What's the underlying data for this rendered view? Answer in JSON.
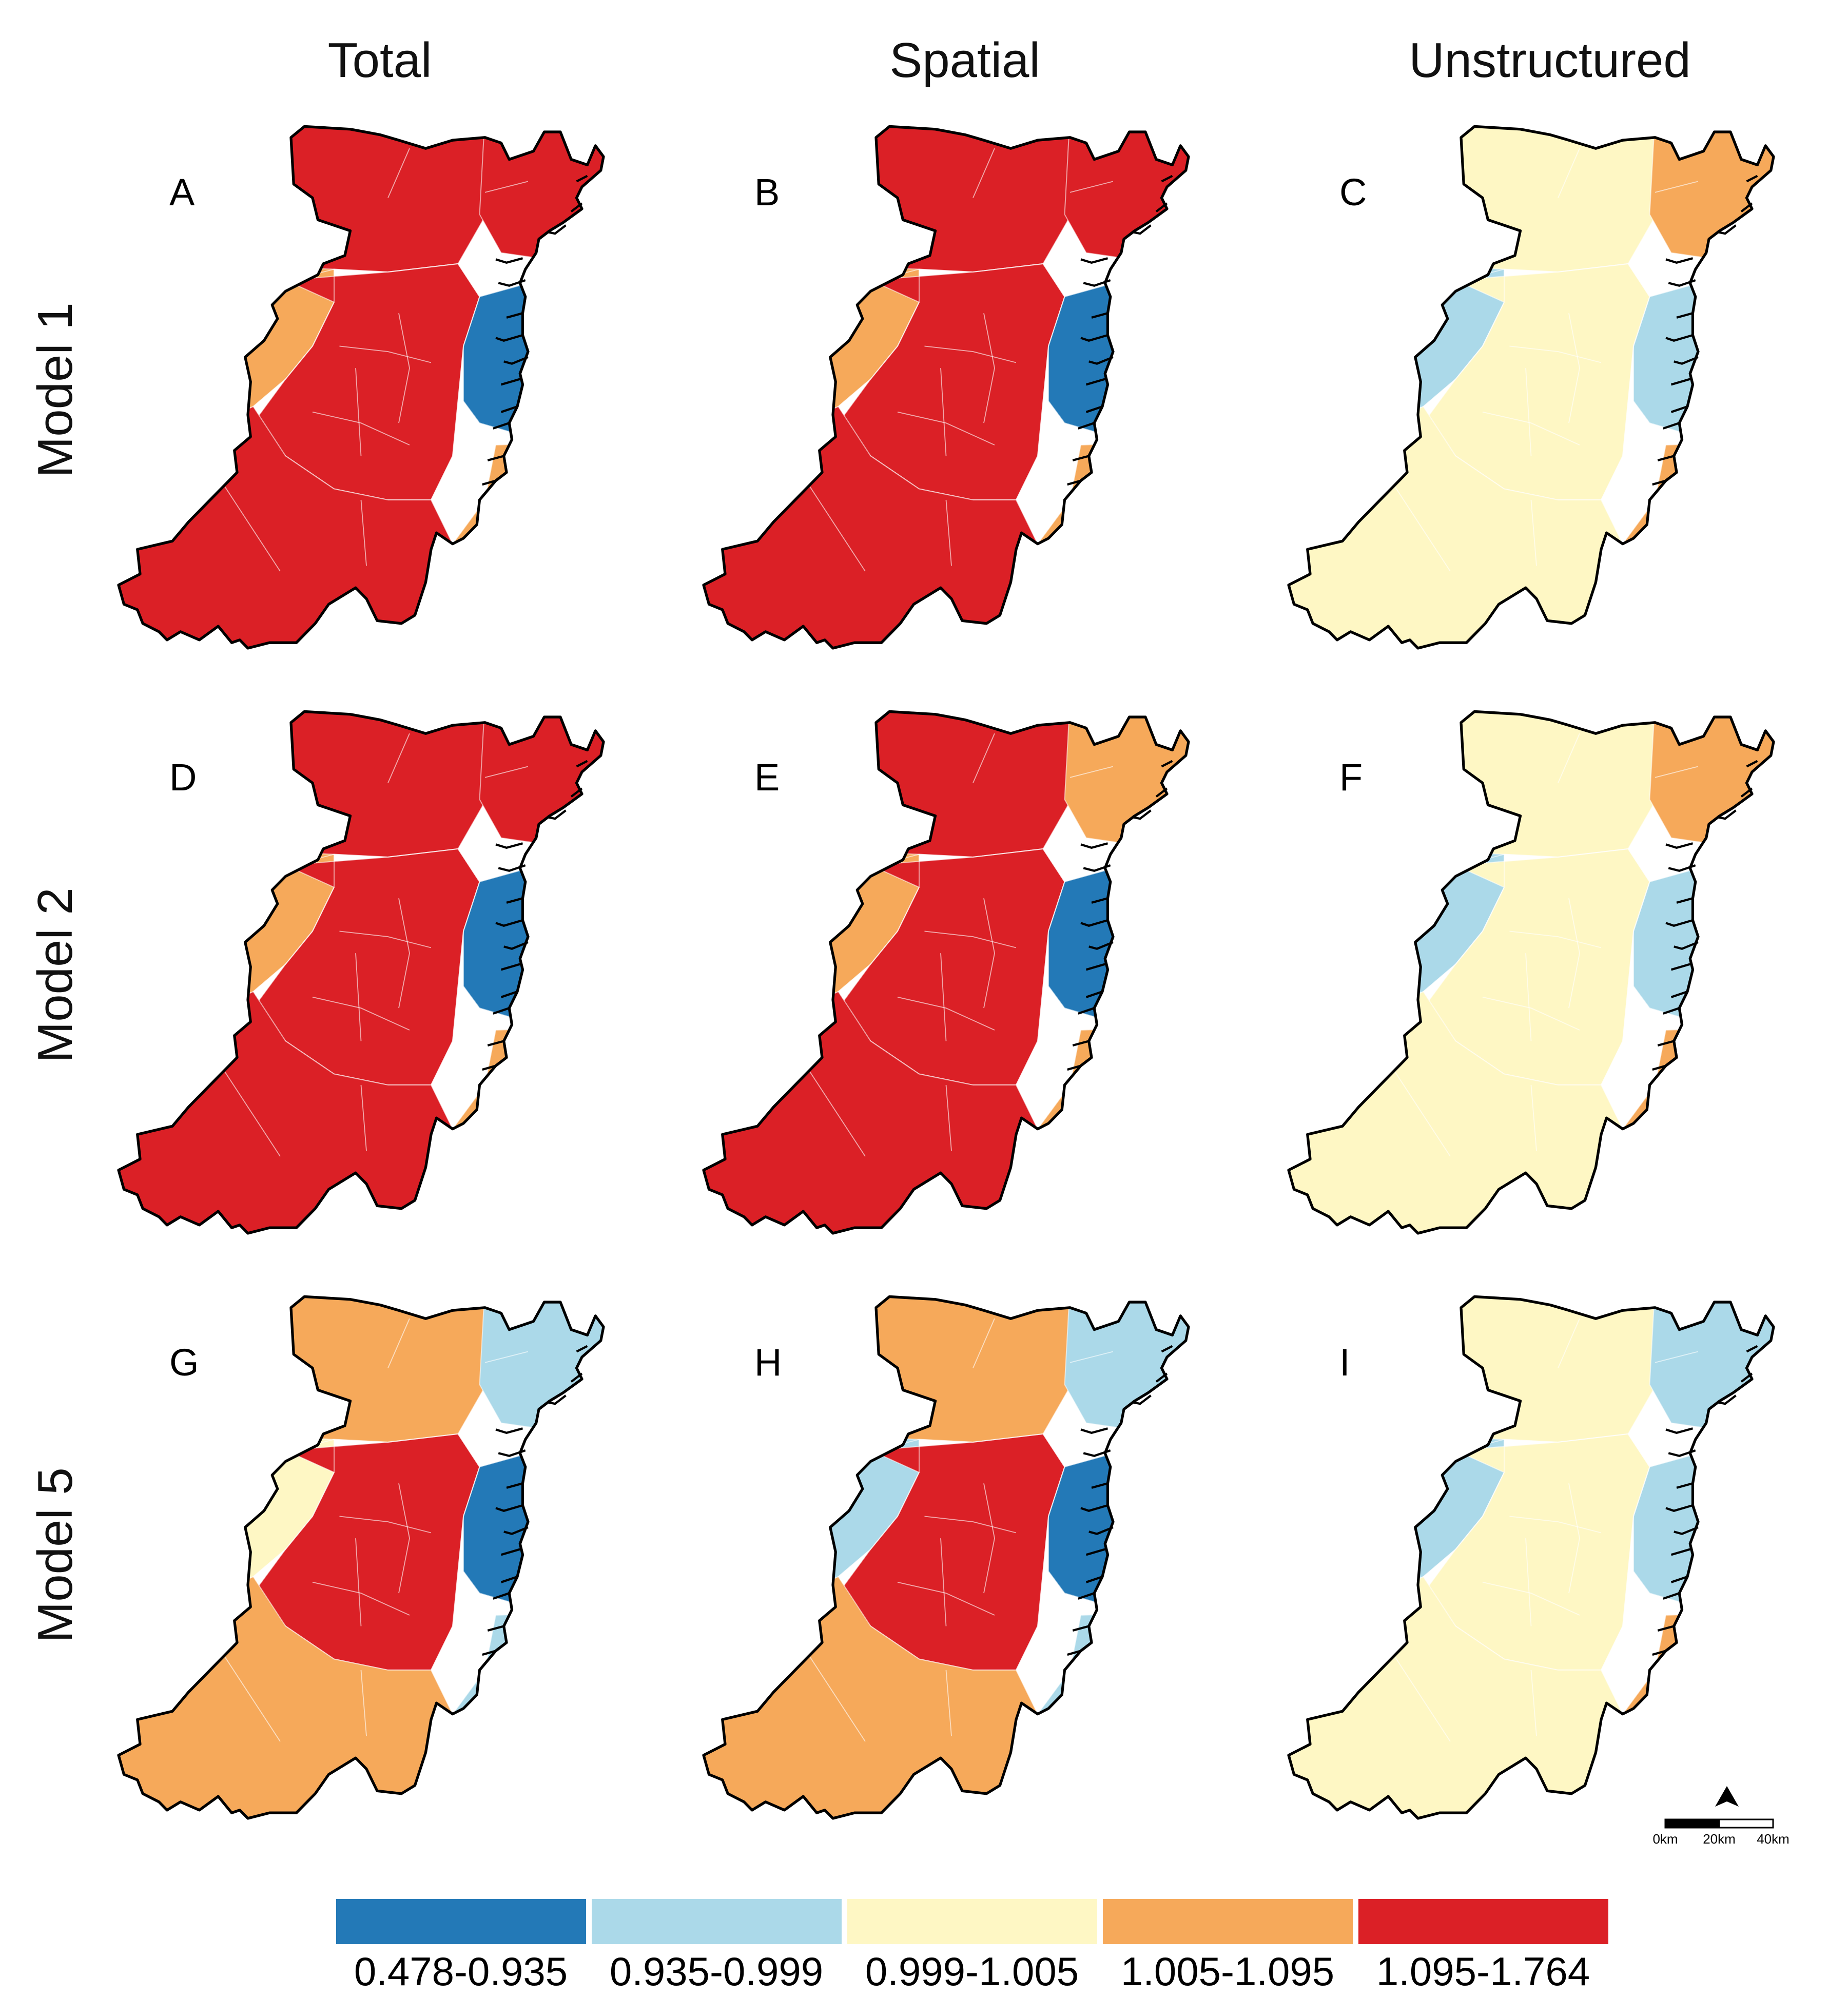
{
  "columns": [
    "Total",
    "Spatial",
    "Unstructured"
  ],
  "rows": [
    "Model 1",
    "Model 2",
    "Model 5"
  ],
  "colors": [
    "#2379b7",
    "#abd9e9",
    "#fef7c4",
    "#f6a95a",
    "#db2026"
  ],
  "legend": {
    "labels": [
      "0.478-0.935",
      "0.935-0.999",
      "0.999-1.005",
      "1.005-1.095",
      "1.095-1.764"
    ]
  },
  "panels": [
    {
      "letter": "A",
      "classes": {
        "north": 4,
        "northeast": 4,
        "west": 3,
        "center": 4,
        "south": 4,
        "east": 0,
        "coast": 3
      }
    },
    {
      "letter": "B",
      "classes": {
        "north": 4,
        "northeast": 4,
        "west": 3,
        "center": 4,
        "south": 4,
        "east": 0,
        "coast": 3
      }
    },
    {
      "letter": "C",
      "classes": {
        "north": 2,
        "northeast": 3,
        "west": 1,
        "center": 2,
        "south": 2,
        "east": 1,
        "coast": 3
      }
    },
    {
      "letter": "D",
      "classes": {
        "north": 4,
        "northeast": 4,
        "west": 3,
        "center": 4,
        "south": 4,
        "east": 0,
        "coast": 3
      }
    },
    {
      "letter": "E",
      "classes": {
        "north": 4,
        "northeast": 3,
        "west": 3,
        "center": 4,
        "south": 4,
        "east": 0,
        "coast": 3
      }
    },
    {
      "letter": "F",
      "classes": {
        "north": 2,
        "northeast": 3,
        "west": 1,
        "center": 2,
        "south": 2,
        "east": 1,
        "coast": 3
      }
    },
    {
      "letter": "G",
      "classes": {
        "north": 3,
        "northeast": 1,
        "west": 2,
        "center": 4,
        "south": 3,
        "east": 0,
        "coast": 1
      }
    },
    {
      "letter": "H",
      "classes": {
        "north": 3,
        "northeast": 1,
        "west": 1,
        "center": 4,
        "south": 3,
        "east": 0,
        "coast": 1
      }
    },
    {
      "letter": "I",
      "classes": {
        "north": 2,
        "northeast": 1,
        "west": 1,
        "center": 2,
        "south": 2,
        "east": 1,
        "coast": 3
      }
    }
  ],
  "scale_bar": {
    "labels": [
      "0km",
      "20km",
      "40km"
    ]
  }
}
